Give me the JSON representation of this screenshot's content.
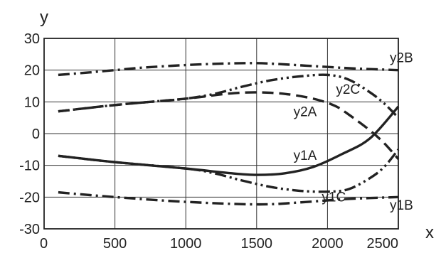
{
  "chart_data": {
    "type": "line",
    "xlabel": "x",
    "ylabel": "y",
    "xlim": [
      0,
      2500
    ],
    "ylim": [
      -30,
      30
    ],
    "grid": true,
    "x_ticks": [
      "0",
      "500",
      "1000",
      "1500",
      "2000",
      "2500"
    ],
    "y_ticks": [
      "30",
      "20",
      "10",
      "0",
      "-10",
      "-20",
      "-30"
    ],
    "series": [
      {
        "name": "y2B",
        "dash": "dash-dot",
        "label_at": [
          2440,
          22.5
        ],
        "points": [
          [
            100,
            18.5
          ],
          [
            300,
            19.2
          ],
          [
            500,
            20.0
          ],
          [
            700,
            20.8
          ],
          [
            1000,
            21.6
          ],
          [
            1300,
            22.1
          ],
          [
            1500,
            22.2
          ],
          [
            1700,
            21.8
          ],
          [
            2000,
            21.0
          ],
          [
            2200,
            20.5
          ],
          [
            2500,
            20.0
          ]
        ]
      },
      {
        "name": "y2C",
        "dash": "dash-dot-dot",
        "label_at": [
          2060,
          12.5
        ],
        "points": [
          [
            100,
            7.0
          ],
          [
            500,
            9.0
          ],
          [
            800,
            10.2
          ],
          [
            1000,
            11.0
          ],
          [
            1200,
            12.5
          ],
          [
            1400,
            14.8
          ],
          [
            1600,
            16.8
          ],
          [
            1800,
            18.0
          ],
          [
            2000,
            18.5
          ],
          [
            2150,
            17.0
          ],
          [
            2300,
            13.0
          ],
          [
            2400,
            9.5
          ],
          [
            2500,
            5.0
          ]
        ]
      },
      {
        "name": "y2A",
        "dash": "dash",
        "label_at": [
          1760,
          5.5
        ],
        "points": [
          [
            100,
            7.0
          ],
          [
            500,
            9.0
          ],
          [
            1000,
            11.0
          ],
          [
            1300,
            12.6
          ],
          [
            1500,
            13.0
          ],
          [
            1700,
            12.5
          ],
          [
            1900,
            11.0
          ],
          [
            2050,
            8.8
          ],
          [
            2150,
            6.0
          ],
          [
            2300,
            1.0
          ],
          [
            2400,
            -3.0
          ],
          [
            2500,
            -8.0
          ]
        ]
      },
      {
        "name": "y1A",
        "dash": "solid",
        "label_at": [
          1760,
          -8.3
        ],
        "points": [
          [
            100,
            -7.0
          ],
          [
            500,
            -9.0
          ],
          [
            1000,
            -11.0
          ],
          [
            1300,
            -12.4
          ],
          [
            1500,
            -13.0
          ],
          [
            1700,
            -12.5
          ],
          [
            1900,
            -10.5
          ],
          [
            2100,
            -6.5
          ],
          [
            2300,
            -1.5
          ],
          [
            2500,
            8.5
          ]
        ]
      },
      {
        "name": "y1C",
        "dash": "dash-dot-dot",
        "label_at": [
          1960,
          -21.4
        ],
        "points": [
          [
            100,
            -7.0
          ],
          [
            500,
            -9.0
          ],
          [
            1000,
            -11.0
          ],
          [
            1200,
            -12.5
          ],
          [
            1400,
            -14.8
          ],
          [
            1600,
            -16.8
          ],
          [
            1800,
            -18.0
          ],
          [
            2000,
            -18.3
          ],
          [
            2150,
            -17.5
          ],
          [
            2300,
            -14.0
          ],
          [
            2400,
            -10.5
          ],
          [
            2500,
            -5.0
          ]
        ]
      },
      {
        "name": "y1B",
        "dash": "dash-dot",
        "label_at": [
          2440,
          -24.0
        ],
        "points": [
          [
            100,
            -18.5
          ],
          [
            500,
            -20.0
          ],
          [
            1000,
            -21.5
          ],
          [
            1500,
            -22.3
          ],
          [
            1800,
            -21.7
          ],
          [
            2100,
            -20.7
          ],
          [
            2300,
            -20.3
          ],
          [
            2500,
            -20.0
          ]
        ]
      }
    ]
  }
}
